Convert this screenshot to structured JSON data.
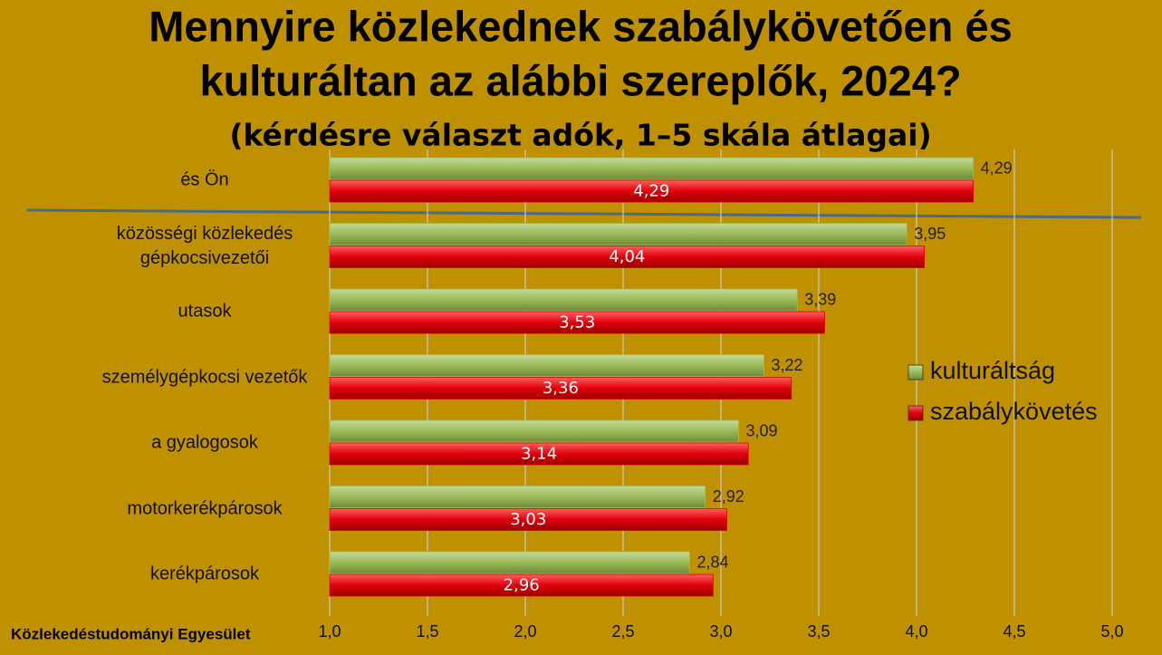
{
  "chart_data": {
    "type": "bar",
    "orientation": "horizontal",
    "title": [
      "Mennyire közlekednek szabálykövetően és",
      "kulturáltan az alábbi szereplők, 2024?"
    ],
    "subtitle": "(kérdésre választ adók, 1–5 skála átlagai)",
    "source": "Közlekedéstudományi Egyesület",
    "categories": [
      "és Ön",
      "közösségi közlekedés gépkocsivezetői",
      "utasok",
      "személygépkocsi vezetők",
      "a gyalogosok",
      "motorkerékpárosok",
      "kerékpárosok"
    ],
    "series": [
      {
        "name": "kulturáltság",
        "color": "#9bbb59",
        "values": [
          4.29,
          3.95,
          3.39,
          3.22,
          3.09,
          2.92,
          2.84
        ],
        "value_labels": [
          "4,29",
          "3,95",
          "3,39",
          "3,22",
          "3,09",
          "2,92",
          "2,84"
        ]
      },
      {
        "name": "szabálykövetés",
        "color": "#e0000a",
        "values": [
          4.29,
          4.04,
          3.53,
          3.36,
          3.14,
          3.03,
          2.96
        ],
        "value_labels": [
          "4,29",
          "4,04",
          "3,53",
          "3,36",
          "3,14",
          "3,03",
          "2,96"
        ]
      }
    ],
    "xlim": [
      1.0,
      5.0
    ],
    "xticks": [
      {
        "value": 1.0,
        "label": "1,0"
      },
      {
        "value": 1.5,
        "label": "1,5"
      },
      {
        "value": 2.0,
        "label": "2,0"
      },
      {
        "value": 2.5,
        "label": "2,5"
      },
      {
        "value": 3.0,
        "label": "3,0"
      },
      {
        "value": 3.5,
        "label": "3,5"
      },
      {
        "value": 4.0,
        "label": "4,0"
      },
      {
        "value": 4.5,
        "label": "4,5"
      },
      {
        "value": 5.0,
        "label": "5,0"
      }
    ],
    "grid": true
  }
}
